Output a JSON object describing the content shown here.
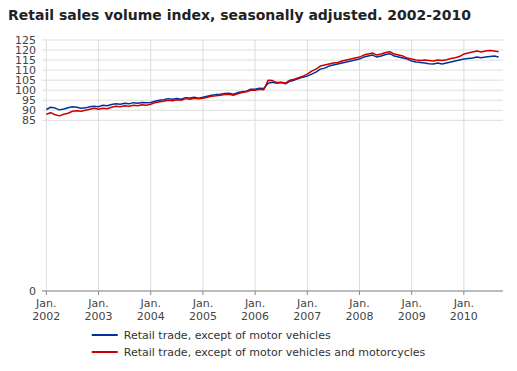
{
  "chart_data": {
    "type": "line",
    "title": "Retail sales volume index, seasonally adjusted. 2002-2010",
    "categories": [
      "Jan.\n2002",
      null,
      null,
      null,
      null,
      null,
      null,
      null,
      null,
      null,
      null,
      null,
      "Jan.\n2003",
      null,
      null,
      null,
      null,
      null,
      null,
      null,
      null,
      null,
      null,
      null,
      "Jan.\n2004",
      null,
      null,
      null,
      null,
      null,
      null,
      null,
      null,
      null,
      null,
      null,
      "Jan.\n2005",
      null,
      null,
      null,
      null,
      null,
      null,
      null,
      null,
      null,
      null,
      null,
      "Jan.\n2006",
      null,
      null,
      null,
      null,
      null,
      null,
      null,
      null,
      null,
      null,
      null,
      "Jan.\n2007",
      null,
      null,
      null,
      null,
      null,
      null,
      null,
      null,
      null,
      null,
      null,
      "Jan.\n2008",
      null,
      null,
      null,
      null,
      null,
      null,
      null,
      null,
      null,
      null,
      null,
      "Jan.\n2009",
      null,
      null,
      null,
      null,
      null,
      null,
      null,
      null,
      null,
      null,
      null,
      "Jan.\n2010",
      null,
      null,
      null,
      null,
      null,
      null,
      null,
      null
    ],
    "series": [
      {
        "name": "Retail trade, except of motor vehicles",
        "color": "#003399",
        "values": [
          90.4,
          91.5,
          91.1,
          90.2,
          90.6,
          91.3,
          91.8,
          91.5,
          91.0,
          91.2,
          91.8,
          92.0,
          91.8,
          92.5,
          92.3,
          92.9,
          93.3,
          93.0,
          93.5,
          93.2,
          93.8,
          93.5,
          93.9,
          93.7,
          93.9,
          94.5,
          95.0,
          95.2,
          95.8,
          95.5,
          95.9,
          95.5,
          96.3,
          96.1,
          96.5,
          96.0,
          96.5,
          97.0,
          97.5,
          97.8,
          98.0,
          98.3,
          98.5,
          98.0,
          98.8,
          99.2,
          99.5,
          100.5,
          100.5,
          101.0,
          100.8,
          103.5,
          104.0,
          103.5,
          103.8,
          103.2,
          104.5,
          105.0,
          105.8,
          106.5,
          107.0,
          108.0,
          109.0,
          110.5,
          111.0,
          112.0,
          112.5,
          113.0,
          113.5,
          114.0,
          114.5,
          115.0,
          115.5,
          116.5,
          117.0,
          117.5,
          116.5,
          117.0,
          117.8,
          118.2,
          117.0,
          116.5,
          116.0,
          115.5,
          114.5,
          114.0,
          113.8,
          113.5,
          113.2,
          113.0,
          113.5,
          113.0,
          113.5,
          114.0,
          114.5,
          115.0,
          115.5,
          115.8,
          116.0,
          116.5,
          116.2,
          116.5,
          116.8,
          117.0,
          116.5
        ]
      },
      {
        "name": "Retail trade, except of motor vehicles and motorcycles",
        "color": "#cc0000",
        "values": [
          88.0,
          88.8,
          87.8,
          87.2,
          88.0,
          88.5,
          89.5,
          89.8,
          89.5,
          90.0,
          90.5,
          91.0,
          90.5,
          91.0,
          90.8,
          91.5,
          92.0,
          91.8,
          92.2,
          92.0,
          92.5,
          92.3,
          92.8,
          92.5,
          93.0,
          93.8,
          94.2,
          94.5,
          95.0,
          94.8,
          95.2,
          95.0,
          95.8,
          95.5,
          96.0,
          95.8,
          96.0,
          96.5,
          97.0,
          97.2,
          97.5,
          97.8,
          98.0,
          97.5,
          98.2,
          98.8,
          99.2,
          100.0,
          100.0,
          100.5,
          100.2,
          105.0,
          104.8,
          103.8,
          104.0,
          103.5,
          105.0,
          105.5,
          106.2,
          107.0,
          108.0,
          109.5,
          110.5,
          112.0,
          112.5,
          113.0,
          113.5,
          113.8,
          114.5,
          115.0,
          115.5,
          116.0,
          116.5,
          117.5,
          118.0,
          118.5,
          117.5,
          118.0,
          118.8,
          119.2,
          118.0,
          117.5,
          117.0,
          116.0,
          115.5,
          115.0,
          114.8,
          115.0,
          114.8,
          114.5,
          115.0,
          114.8,
          115.2,
          115.8,
          116.2,
          116.8,
          118.0,
          118.5,
          119.0,
          119.5,
          119.0,
          119.5,
          119.8,
          119.5,
          119.2
        ]
      }
    ],
    "ylim": [
      0,
      125
    ],
    "yticks": [
      0,
      85,
      90,
      95,
      100,
      105,
      110,
      115,
      120,
      125
    ],
    "grid": true,
    "legend": "bottom"
  }
}
